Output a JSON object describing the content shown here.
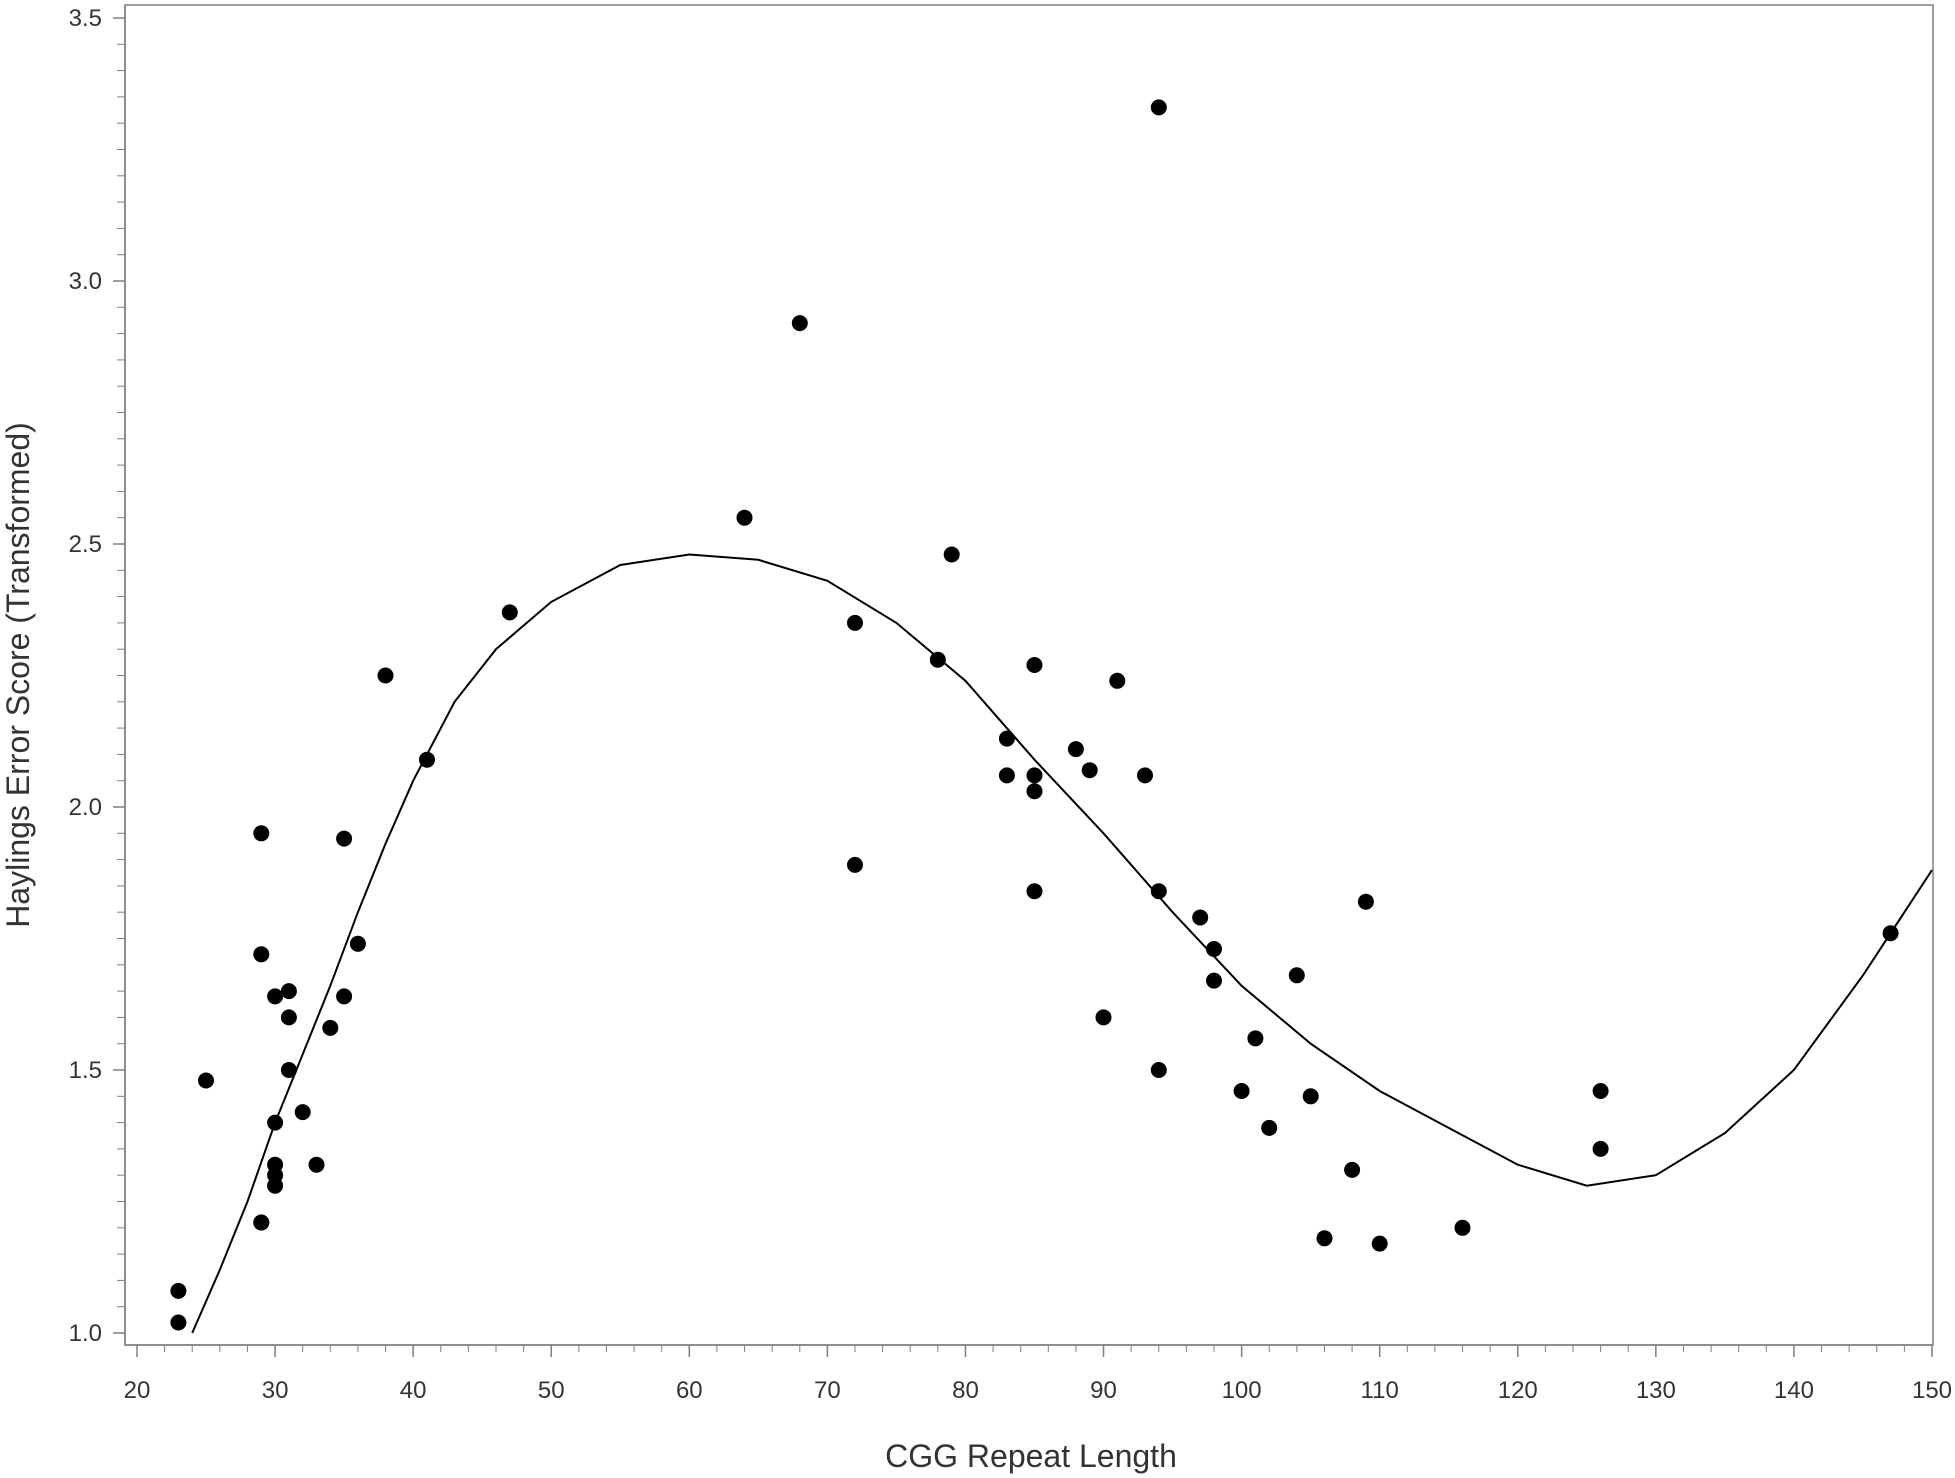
{
  "chart_data": {
    "type": "scatter",
    "title": "",
    "xlabel": "CGG Repeat Length",
    "ylabel": "Haylings Error Score (Transformed)",
    "xlim": [
      20,
      150
    ],
    "ylim": [
      1.0,
      3.5
    ],
    "x_ticks": [
      "20",
      "30",
      "40",
      "50",
      "60",
      "70",
      "80",
      "90",
      "100",
      "110",
      "120",
      "130",
      "140",
      "150"
    ],
    "y_ticks": [
      "1.0",
      "1.5",
      "2.0",
      "2.5",
      "3.0",
      "3.5"
    ],
    "grid": false,
    "legend": "none",
    "colors": {
      "points": "#000000",
      "fit_line": "#000000",
      "frame": "#7f7f7f"
    },
    "series": [
      {
        "type": "scatter",
        "points": [
          [
            23,
            1.08
          ],
          [
            23,
            1.02
          ],
          [
            25,
            1.48
          ],
          [
            29,
            1.95
          ],
          [
            29,
            1.72
          ],
          [
            29,
            1.21
          ],
          [
            29,
            1.21
          ],
          [
            30,
            1.64
          ],
          [
            30,
            1.4
          ],
          [
            30,
            1.32
          ],
          [
            30,
            1.3
          ],
          [
            30,
            1.28
          ],
          [
            31,
            1.65
          ],
          [
            31,
            1.6
          ],
          [
            31,
            1.5
          ],
          [
            32,
            1.42
          ],
          [
            33,
            1.32
          ],
          [
            34,
            1.58
          ],
          [
            35,
            1.94
          ],
          [
            35,
            1.64
          ],
          [
            36,
            1.74
          ],
          [
            38,
            2.25
          ],
          [
            41,
            2.09
          ],
          [
            47,
            2.37
          ],
          [
            64,
            2.55
          ],
          [
            68,
            2.92
          ],
          [
            72,
            2.35
          ],
          [
            72,
            1.89
          ],
          [
            78,
            2.28
          ],
          [
            79,
            2.48
          ],
          [
            83,
            2.13
          ],
          [
            83,
            2.06
          ],
          [
            85,
            2.27
          ],
          [
            85,
            2.06
          ],
          [
            85,
            2.03
          ],
          [
            85,
            1.84
          ],
          [
            88,
            2.11
          ],
          [
            89,
            2.07
          ],
          [
            90,
            1.6
          ],
          [
            91,
            2.24
          ],
          [
            93,
            2.06
          ],
          [
            94,
            3.33
          ],
          [
            94,
            1.84
          ],
          [
            94,
            1.5
          ],
          [
            97,
            1.79
          ],
          [
            98,
            1.73
          ],
          [
            98,
            1.67
          ],
          [
            100,
            1.46
          ],
          [
            101,
            1.56
          ],
          [
            102,
            1.39
          ],
          [
            104,
            1.68
          ],
          [
            105,
            1.45
          ],
          [
            106,
            1.18
          ],
          [
            108,
            1.31
          ],
          [
            109,
            1.82
          ],
          [
            110,
            1.17
          ],
          [
            116,
            1.2
          ],
          [
            126,
            1.46
          ],
          [
            126,
            1.35
          ],
          [
            147,
            1.76
          ]
        ]
      },
      {
        "type": "line",
        "points": [
          [
            24,
            1.0
          ],
          [
            26,
            1.12
          ],
          [
            28,
            1.25
          ],
          [
            30,
            1.4
          ],
          [
            32,
            1.53
          ],
          [
            34,
            1.66
          ],
          [
            36,
            1.8
          ],
          [
            38,
            1.93
          ],
          [
            40,
            2.05
          ],
          [
            43,
            2.2
          ],
          [
            46,
            2.3
          ],
          [
            50,
            2.39
          ],
          [
            55,
            2.46
          ],
          [
            60,
            2.48
          ],
          [
            65,
            2.47
          ],
          [
            70,
            2.43
          ],
          [
            75,
            2.35
          ],
          [
            80,
            2.24
          ],
          [
            85,
            2.09
          ],
          [
            90,
            1.95
          ],
          [
            95,
            1.8
          ],
          [
            100,
            1.66
          ],
          [
            105,
            1.55
          ],
          [
            110,
            1.46
          ],
          [
            115,
            1.39
          ],
          [
            120,
            1.32
          ],
          [
            125,
            1.28
          ],
          [
            130,
            1.3
          ],
          [
            135,
            1.38
          ],
          [
            140,
            1.5
          ],
          [
            145,
            1.68
          ],
          [
            150,
            1.88
          ]
        ]
      }
    ]
  }
}
